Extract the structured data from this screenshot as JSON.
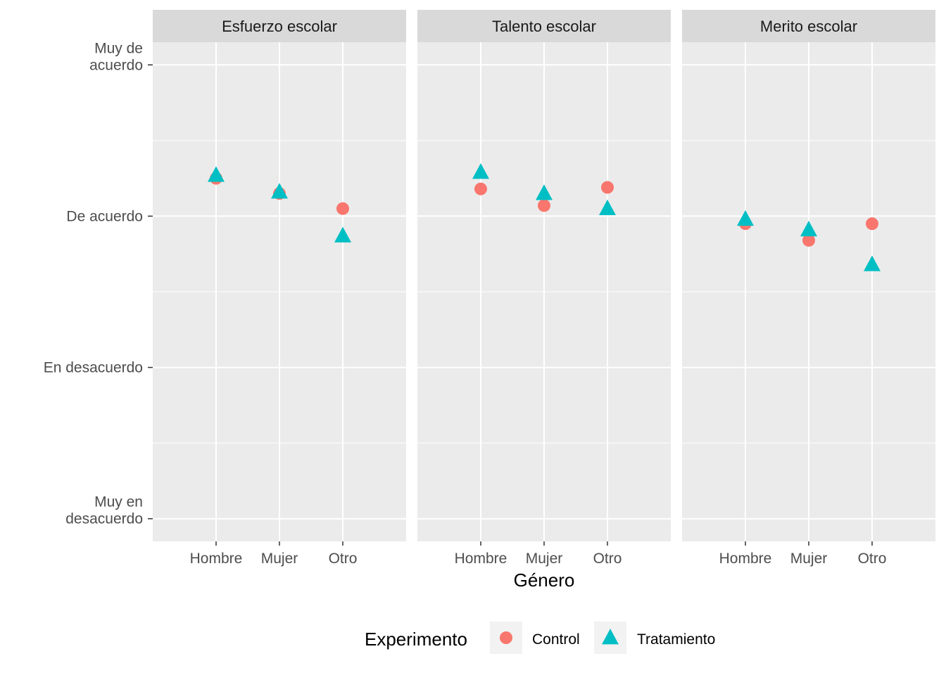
{
  "chart_data": {
    "type": "scatter",
    "facets": [
      "Esfuerzo escolar",
      "Talento escolar",
      "Merito escolar"
    ],
    "categories": [
      "Hombre",
      "Mujer",
      "Otro"
    ],
    "xlabel": "Género",
    "ylabel": "",
    "y_ticks": [
      {
        "value": 1,
        "label": [
          "Muy en",
          "desacuerdo"
        ]
      },
      {
        "value": 2,
        "label": [
          "En desacuerdo"
        ]
      },
      {
        "value": 3,
        "label": [
          "De acuerdo"
        ]
      },
      {
        "value": 4,
        "label": [
          "Muy de",
          "acuerdo"
        ]
      }
    ],
    "ylim": [
      0.85,
      4.15
    ],
    "legend": {
      "title": "Experimento",
      "position": "bottom"
    },
    "series": [
      {
        "name": "Control",
        "shape": "circle",
        "color": "#F8766D",
        "values": {
          "Esfuerzo escolar": [
            3.25,
            3.15,
            3.05
          ],
          "Talento escolar": [
            3.18,
            3.07,
            3.19
          ],
          "Merito escolar": [
            2.95,
            2.84,
            2.95
          ]
        }
      },
      {
        "name": "Tratamiento",
        "shape": "triangle",
        "color": "#00BFC4",
        "values": {
          "Esfuerzo escolar": [
            3.27,
            3.16,
            2.87
          ],
          "Talento escolar": [
            3.29,
            3.15,
            3.05
          ],
          "Merito escolar": [
            2.98,
            2.91,
            2.68
          ]
        }
      }
    ]
  }
}
